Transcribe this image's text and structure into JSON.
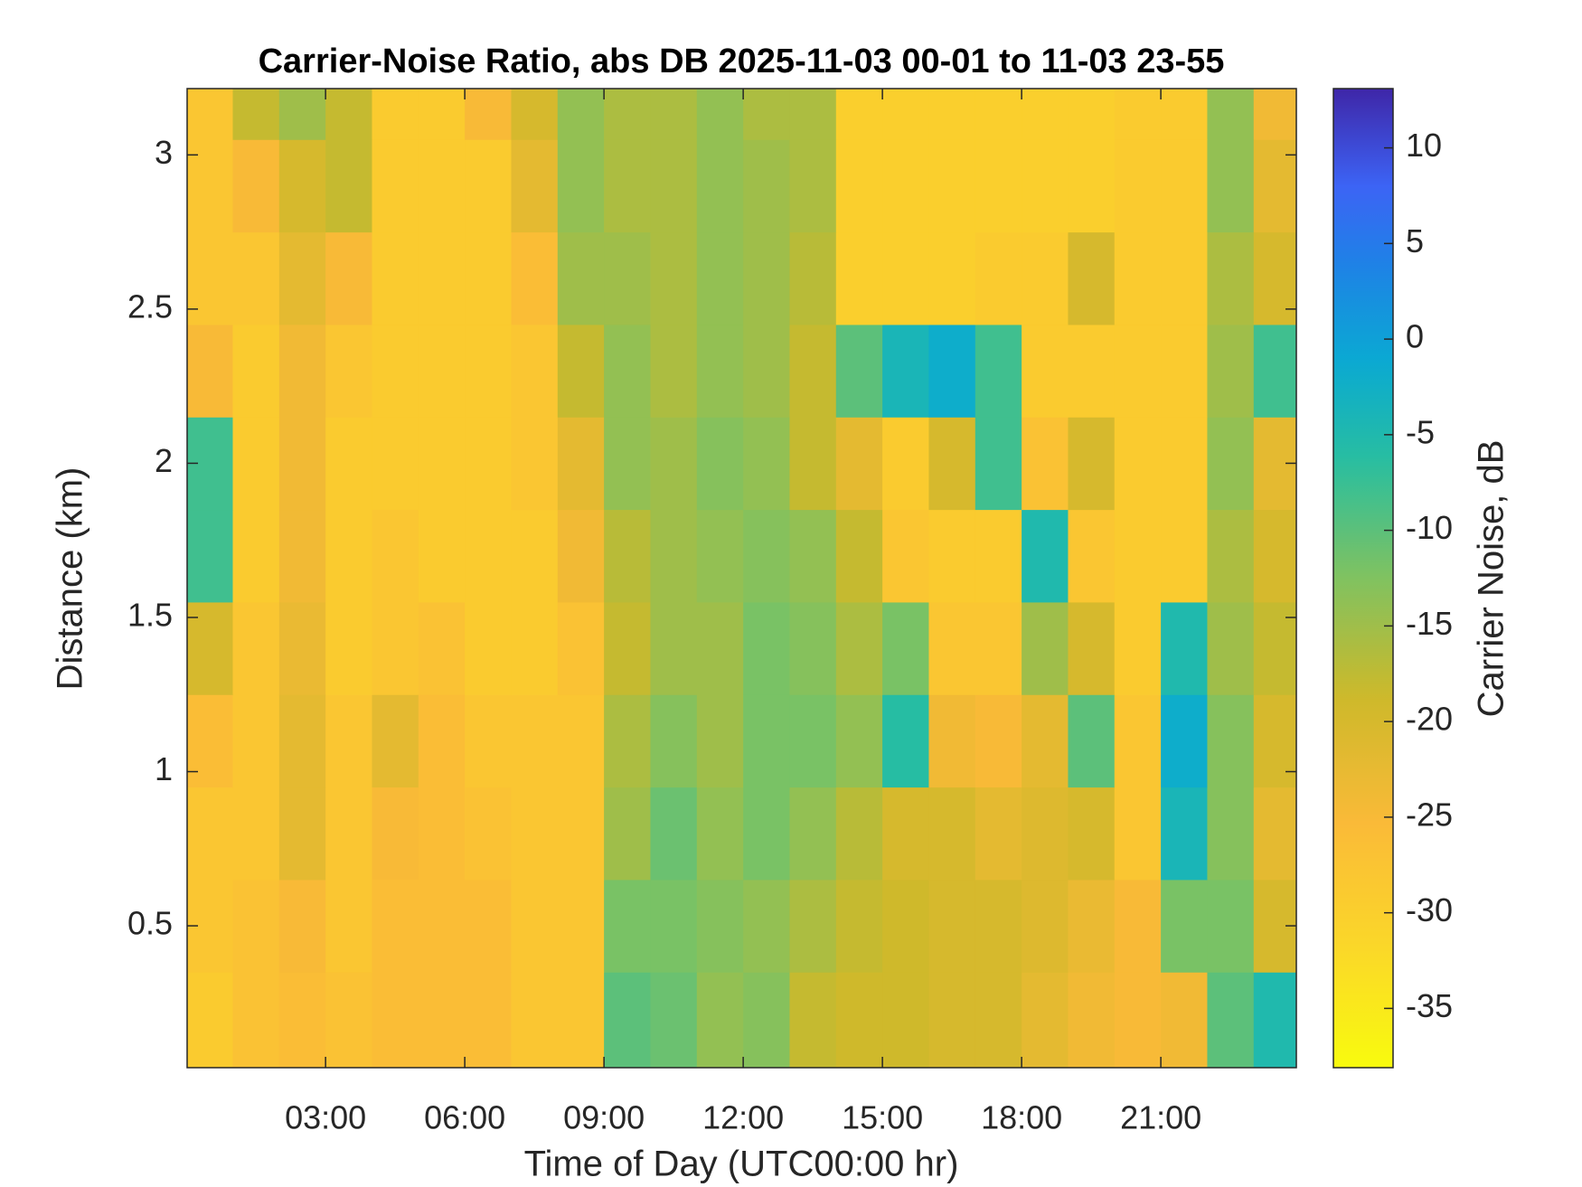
{
  "chart_data": {
    "type": "heatmap",
    "title": "Carrier-Noise Ratio, abs DB 2025-11-03 00-01 to 11-03 23-55",
    "xlabel": "Time of Day (UTC00:00 hr)",
    "ylabel": "Distance (km)",
    "xlim": [
      0.0167,
      23.92
    ],
    "xticks": [
      {
        "value": 3,
        "label": "03:00"
      },
      {
        "value": 6,
        "label": "06:00"
      },
      {
        "value": 9,
        "label": "09:00"
      },
      {
        "value": 12,
        "label": "12:00"
      },
      {
        "value": 15,
        "label": "15:00"
      },
      {
        "value": 18,
        "label": "18:00"
      },
      {
        "value": 21,
        "label": "21:00"
      }
    ],
    "ylim": [
      0.04,
      3.215
    ],
    "yticks": [
      0.5,
      1,
      1.5,
      2,
      2.5,
      3
    ],
    "x": [
      0.5,
      1.5,
      2.5,
      3.5,
      4.5,
      5.5,
      6.5,
      7.5,
      8.5,
      9.5,
      10.5,
      11.5,
      12.5,
      13.5,
      14.5,
      15.5,
      16.5,
      17.5,
      18.5,
      19.5,
      20.5,
      21.5,
      22.5,
      23.5
    ],
    "y": [
      0.2,
      0.5,
      0.8,
      1.1,
      1.4,
      1.7,
      2.0,
      2.3,
      2.6,
      2.9,
      3.2
    ],
    "z": [
      [
        -29,
        -27,
        -26,
        -27,
        -26,
        -26,
        -26,
        -28,
        -28,
        -10,
        -11,
        -14,
        -13,
        -18,
        -19,
        -19,
        -20,
        -20,
        -22,
        -24,
        -25,
        -24,
        -10,
        -5
      ],
      [
        -28,
        -27,
        -25,
        -28,
        -26,
        -26,
        -26,
        -28,
        -28,
        -12,
        -12,
        -13,
        -14,
        -16,
        -18,
        -19,
        -20,
        -20,
        -21,
        -23,
        -25,
        -12,
        -12,
        -20
      ],
      [
        -28,
        -28,
        -22,
        -28,
        -25,
        -26,
        -27,
        -28,
        -28,
        -15,
        -11,
        -14,
        -12,
        -14,
        -17,
        -20,
        -20,
        -22,
        -21,
        -20,
        -28,
        -4,
        -13,
        -22
      ],
      [
        -26,
        -28,
        -22,
        -28,
        -22,
        -26,
        -28,
        -28,
        -28,
        -16,
        -13,
        -15,
        -12,
        -12,
        -14,
        -6,
        -24,
        -25,
        -22,
        -10,
        -28,
        -2,
        -13,
        -20
      ],
      [
        -20,
        -28,
        -23,
        -29,
        -28,
        -27,
        -29,
        -29,
        -27,
        -18,
        -15,
        -15,
        -12,
        -13,
        -16,
        -12,
        -28,
        -28,
        -15,
        -20,
        -29,
        -5,
        -15,
        -18
      ],
      [
        -8,
        -29,
        -24,
        -29,
        -28,
        -29,
        -29,
        -29,
        -24,
        -17,
        -15,
        -14,
        -13,
        -14,
        -18,
        -28,
        -29,
        -29,
        -5,
        -28,
        -29,
        -29,
        -16,
        -20
      ],
      [
        -8,
        -29,
        -24,
        -29,
        -29,
        -29,
        -29,
        -28,
        -22,
        -14,
        -15,
        -13,
        -14,
        -18,
        -22,
        -29,
        -20,
        -8,
        -27,
        -20,
        -29,
        -29,
        -14,
        -22
      ],
      [
        -25,
        -29,
        -24,
        -28,
        -29,
        -29,
        -29,
        -28,
        -18,
        -14,
        -16,
        -14,
        -15,
        -18,
        -10,
        -4,
        -2,
        -8,
        -29,
        -29,
        -29,
        -29,
        -15,
        -8
      ],
      [
        -28,
        -28,
        -22,
        -25,
        -29,
        -29,
        -29,
        -26,
        -15,
        -15,
        -16,
        -14,
        -15,
        -17,
        -30,
        -30,
        -30,
        -29,
        -29,
        -20,
        -29,
        -29,
        -16,
        -20
      ],
      [
        -28,
        -25,
        -20,
        -18,
        -29,
        -29,
        -29,
        -22,
        -14,
        -16,
        -16,
        -14,
        -15,
        -16,
        -30,
        -30,
        -30,
        -30,
        -30,
        -30,
        -29,
        -29,
        -14,
        -22
      ],
      [
        -28,
        -18,
        -15,
        -18,
        -29,
        -29,
        -25,
        -20,
        -14,
        -16,
        -16,
        -14,
        -16,
        -16,
        -30,
        -30,
        -30,
        -30,
        -30,
        -30,
        -29,
        -29,
        -14,
        -24
      ]
    ],
    "colorbar": {
      "label": "Carrier Noise, dB",
      "lim": [
        -38.1,
        13.1
      ],
      "ticks": [
        -35,
        -30,
        -25,
        -20,
        -15,
        -10,
        -5,
        0,
        5,
        10
      ]
    }
  }
}
